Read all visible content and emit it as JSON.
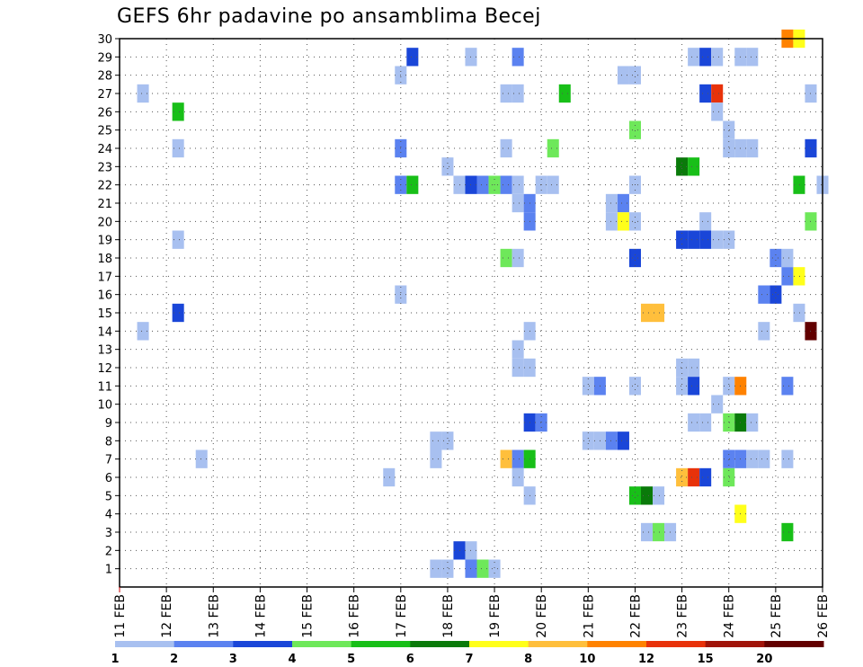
{
  "chart_data": {
    "type": "heatmap",
    "title": "GEFS 6hr padavine po ansamblima Becej",
    "y_ticks": [
      "1",
      "2",
      "3",
      "4",
      "5",
      "6",
      "7",
      "8",
      "9",
      "10",
      "11",
      "12",
      "13",
      "14",
      "15",
      "16",
      "17",
      "18",
      "19",
      "20",
      "21",
      "22",
      "23",
      "24",
      "25",
      "26",
      "27",
      "28",
      "29",
      "30"
    ],
    "ylim": [
      0,
      30
    ],
    "x_ticks": [
      "11 FEB",
      "12 FEB",
      "13 FEB",
      "14 FEB",
      "15 FEB",
      "16 FEB",
      "17 FEB",
      "18 FEB",
      "19 FEB",
      "20 FEB",
      "21 FEB",
      "22 FEB",
      "23 FEB",
      "24 FEB",
      "25 FEB",
      "26 FEB"
    ],
    "x_steps_per_day": 4,
    "x_range_steps": [
      0,
      60
    ],
    "grid": true,
    "color_levels": [
      "1",
      "2",
      "3",
      "4",
      "5",
      "6",
      "7",
      "8",
      "10",
      "12",
      "15",
      "20"
    ],
    "color_bins": [
      {
        "lo": 1,
        "hi": 2,
        "color": "#a8c0f0"
      },
      {
        "lo": 2,
        "hi": 3,
        "color": "#5b82f0"
      },
      {
        "lo": 3,
        "hi": 4,
        "color": "#1a46d8"
      },
      {
        "lo": 4,
        "hi": 5,
        "color": "#6ee85a"
      },
      {
        "lo": 5,
        "hi": 6,
        "color": "#18bf18"
      },
      {
        "lo": 6,
        "hi": 7,
        "color": "#0a7a0a"
      },
      {
        "lo": 7,
        "hi": 8,
        "color": "#ffff1a"
      },
      {
        "lo": 8,
        "hi": 10,
        "color": "#ffbf3c"
      },
      {
        "lo": 10,
        "hi": 12,
        "color": "#ff8200"
      },
      {
        "lo": 12,
        "hi": 15,
        "color": "#e8320a"
      },
      {
        "lo": 15,
        "hi": 20,
        "color": "#a0140a"
      },
      {
        "lo": 20,
        "hi": 30,
        "color": "#620000"
      }
    ],
    "cells_note": "each cell: [member 1-30, 6h step index from 11 FEB 00Z, precipitation mm]",
    "cells": [
      [
        30,
        57,
        10
      ],
      [
        30,
        58,
        7
      ],
      [
        29,
        25,
        3
      ],
      [
        29,
        30,
        1
      ],
      [
        29,
        34,
        2
      ],
      [
        29,
        49,
        1
      ],
      [
        29,
        50,
        3
      ],
      [
        29,
        51,
        1
      ],
      [
        29,
        53,
        1
      ],
      [
        29,
        54,
        1
      ],
      [
        28,
        24,
        1
      ],
      [
        28,
        43,
        1
      ],
      [
        28,
        44,
        1
      ],
      [
        27,
        2,
        1
      ],
      [
        27,
        33,
        1
      ],
      [
        27,
        34,
        1
      ],
      [
        27,
        38,
        5
      ],
      [
        27,
        50,
        3
      ],
      [
        27,
        51,
        12
      ],
      [
        27,
        59,
        1
      ],
      [
        26,
        5,
        5
      ],
      [
        26,
        51,
        1
      ],
      [
        25,
        44,
        4
      ],
      [
        25,
        52,
        1
      ],
      [
        24,
        5,
        1
      ],
      [
        24,
        24,
        2
      ],
      [
        24,
        33,
        1
      ],
      [
        24,
        37,
        4
      ],
      [
        24,
        52,
        1
      ],
      [
        24,
        53,
        1
      ],
      [
        24,
        54,
        1
      ],
      [
        24,
        59,
        3
      ],
      [
        23,
        28,
        1
      ],
      [
        23,
        48,
        6
      ],
      [
        23,
        49,
        5
      ],
      [
        22,
        24,
        2
      ],
      [
        22,
        25,
        5
      ],
      [
        22,
        29,
        1
      ],
      [
        22,
        30,
        3
      ],
      [
        22,
        31,
        2
      ],
      [
        22,
        32,
        4
      ],
      [
        22,
        33,
        2
      ],
      [
        22,
        34,
        1
      ],
      [
        22,
        36,
        1
      ],
      [
        22,
        37,
        1
      ],
      [
        22,
        44,
        1
      ],
      [
        22,
        58,
        5
      ],
      [
        22,
        60,
        1
      ],
      [
        21,
        34,
        1
      ],
      [
        21,
        35,
        2
      ],
      [
        21,
        42,
        1
      ],
      [
        21,
        43,
        2
      ],
      [
        20,
        35,
        2
      ],
      [
        20,
        42,
        1
      ],
      [
        20,
        43,
        7
      ],
      [
        20,
        44,
        1
      ],
      [
        20,
        50,
        1
      ],
      [
        20,
        59,
        4
      ],
      [
        19,
        5,
        1
      ],
      [
        19,
        48,
        3
      ],
      [
        19,
        49,
        3
      ],
      [
        19,
        50,
        3
      ],
      [
        19,
        51,
        1
      ],
      [
        19,
        52,
        1
      ],
      [
        18,
        33,
        4
      ],
      [
        18,
        34,
        1
      ],
      [
        18,
        44,
        3
      ],
      [
        18,
        56,
        2
      ],
      [
        18,
        57,
        1
      ],
      [
        17,
        57,
        2
      ],
      [
        17,
        58,
        7
      ],
      [
        16,
        24,
        1
      ],
      [
        16,
        55,
        2
      ],
      [
        16,
        56,
        3
      ],
      [
        15,
        5,
        3
      ],
      [
        15,
        45,
        8
      ],
      [
        15,
        46,
        8
      ],
      [
        15,
        58,
        1
      ],
      [
        14,
        2,
        1
      ],
      [
        14,
        35,
        1
      ],
      [
        14,
        55,
        1
      ],
      [
        14,
        59,
        20
      ],
      [
        13,
        34,
        1
      ],
      [
        12,
        34,
        1
      ],
      [
        12,
        35,
        1
      ],
      [
        12,
        48,
        1
      ],
      [
        12,
        49,
        1
      ],
      [
        11,
        40,
        1
      ],
      [
        11,
        41,
        2
      ],
      [
        11,
        44,
        1
      ],
      [
        11,
        48,
        1
      ],
      [
        11,
        49,
        3
      ],
      [
        11,
        52,
        1
      ],
      [
        11,
        53,
        10
      ],
      [
        11,
        57,
        2
      ],
      [
        10,
        51,
        1
      ],
      [
        9,
        35,
        3
      ],
      [
        9,
        36,
        2
      ],
      [
        9,
        49,
        1
      ],
      [
        9,
        50,
        1
      ],
      [
        9,
        52,
        4
      ],
      [
        9,
        53,
        6
      ],
      [
        9,
        54,
        1
      ],
      [
        8,
        27,
        1
      ],
      [
        8,
        28,
        1
      ],
      [
        8,
        40,
        1
      ],
      [
        8,
        41,
        1
      ],
      [
        8,
        42,
        2
      ],
      [
        8,
        43,
        3
      ],
      [
        7,
        7,
        1
      ],
      [
        7,
        27,
        1
      ],
      [
        7,
        33,
        8
      ],
      [
        7,
        34,
        2
      ],
      [
        7,
        35,
        5
      ],
      [
        7,
        52,
        2
      ],
      [
        7,
        53,
        2
      ],
      [
        7,
        54,
        1
      ],
      [
        7,
        55,
        1
      ],
      [
        7,
        57,
        1
      ],
      [
        6,
        23,
        1
      ],
      [
        6,
        34,
        1
      ],
      [
        6,
        48,
        8
      ],
      [
        6,
        49,
        12
      ],
      [
        6,
        50,
        3
      ],
      [
        6,
        52,
        4
      ],
      [
        5,
        35,
        1
      ],
      [
        5,
        44,
        5
      ],
      [
        5,
        45,
        6
      ],
      [
        5,
        46,
        1
      ],
      [
        4,
        53,
        7
      ],
      [
        3,
        45,
        1
      ],
      [
        3,
        46,
        4
      ],
      [
        3,
        47,
        1
      ],
      [
        3,
        57,
        5
      ],
      [
        2,
        29,
        3
      ],
      [
        2,
        30,
        1
      ],
      [
        1,
        27,
        1
      ],
      [
        1,
        28,
        1
      ],
      [
        1,
        30,
        2
      ],
      [
        1,
        31,
        4
      ],
      [
        1,
        32,
        1
      ]
    ]
  }
}
